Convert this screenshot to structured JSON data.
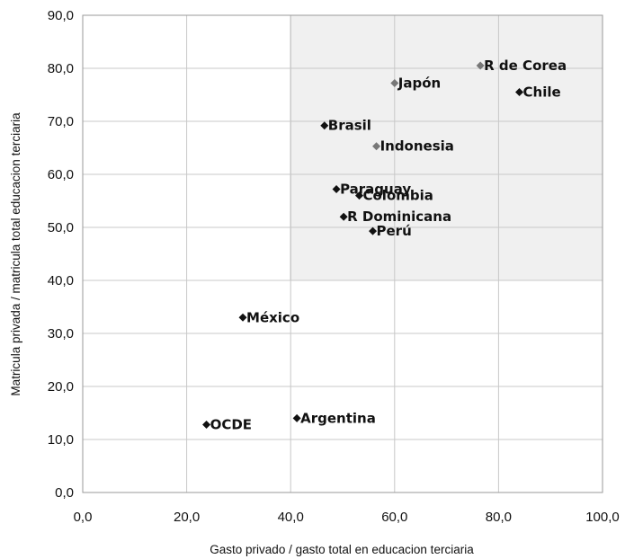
{
  "chart_data": {
    "type": "scatter",
    "xlabel": "Gasto privado / gasto total en educacion terciaria",
    "ylabel": "Matricula privada / matricula total educacion terciaria",
    "xlim": [
      0,
      100
    ],
    "ylim": [
      0,
      90
    ],
    "x_ticks": [
      "0,0",
      "20,0",
      "40,0",
      "60,0",
      "80,0",
      "100,0"
    ],
    "y_ticks": [
      "0,0",
      "10,0",
      "20,0",
      "30,0",
      "40,0",
      "50,0",
      "60,0",
      "70,0",
      "80,0",
      "90,0"
    ],
    "grid": true,
    "highlight_region": {
      "x": [
        40,
        100
      ],
      "y": [
        40,
        90
      ],
      "fill": "#f0f0f0"
    },
    "points": [
      {
        "label": "R de Corea",
        "x": 76.5,
        "y": 80.5,
        "color": "#777777"
      },
      {
        "label": "Japón",
        "x": 60.0,
        "y": 77.2,
        "color": "#777777"
      },
      {
        "label": "Chile",
        "x": 84.0,
        "y": 75.5,
        "color": "#111111"
      },
      {
        "label": "Brasil",
        "x": 46.5,
        "y": 69.2,
        "color": "#111111"
      },
      {
        "label": "Indonesia",
        "x": 56.5,
        "y": 65.3,
        "color": "#777777"
      },
      {
        "label": "Paraguay",
        "x": 48.8,
        "y": 57.2,
        "color": "#111111"
      },
      {
        "label": "Colombia",
        "x": 53.2,
        "y": 56.0,
        "color": "#111111"
      },
      {
        "label": "R Dominicana",
        "x": 50.2,
        "y": 52.0,
        "color": "#111111"
      },
      {
        "label": "Perú",
        "x": 55.8,
        "y": 49.3,
        "color": "#111111"
      },
      {
        "label": "México",
        "x": 30.8,
        "y": 33.0,
        "color": "#111111"
      },
      {
        "label": "Argentina",
        "x": 41.2,
        "y": 14.0,
        "color": "#111111"
      },
      {
        "label": "OCDE",
        "x": 23.8,
        "y": 12.8,
        "color": "#111111"
      }
    ]
  }
}
